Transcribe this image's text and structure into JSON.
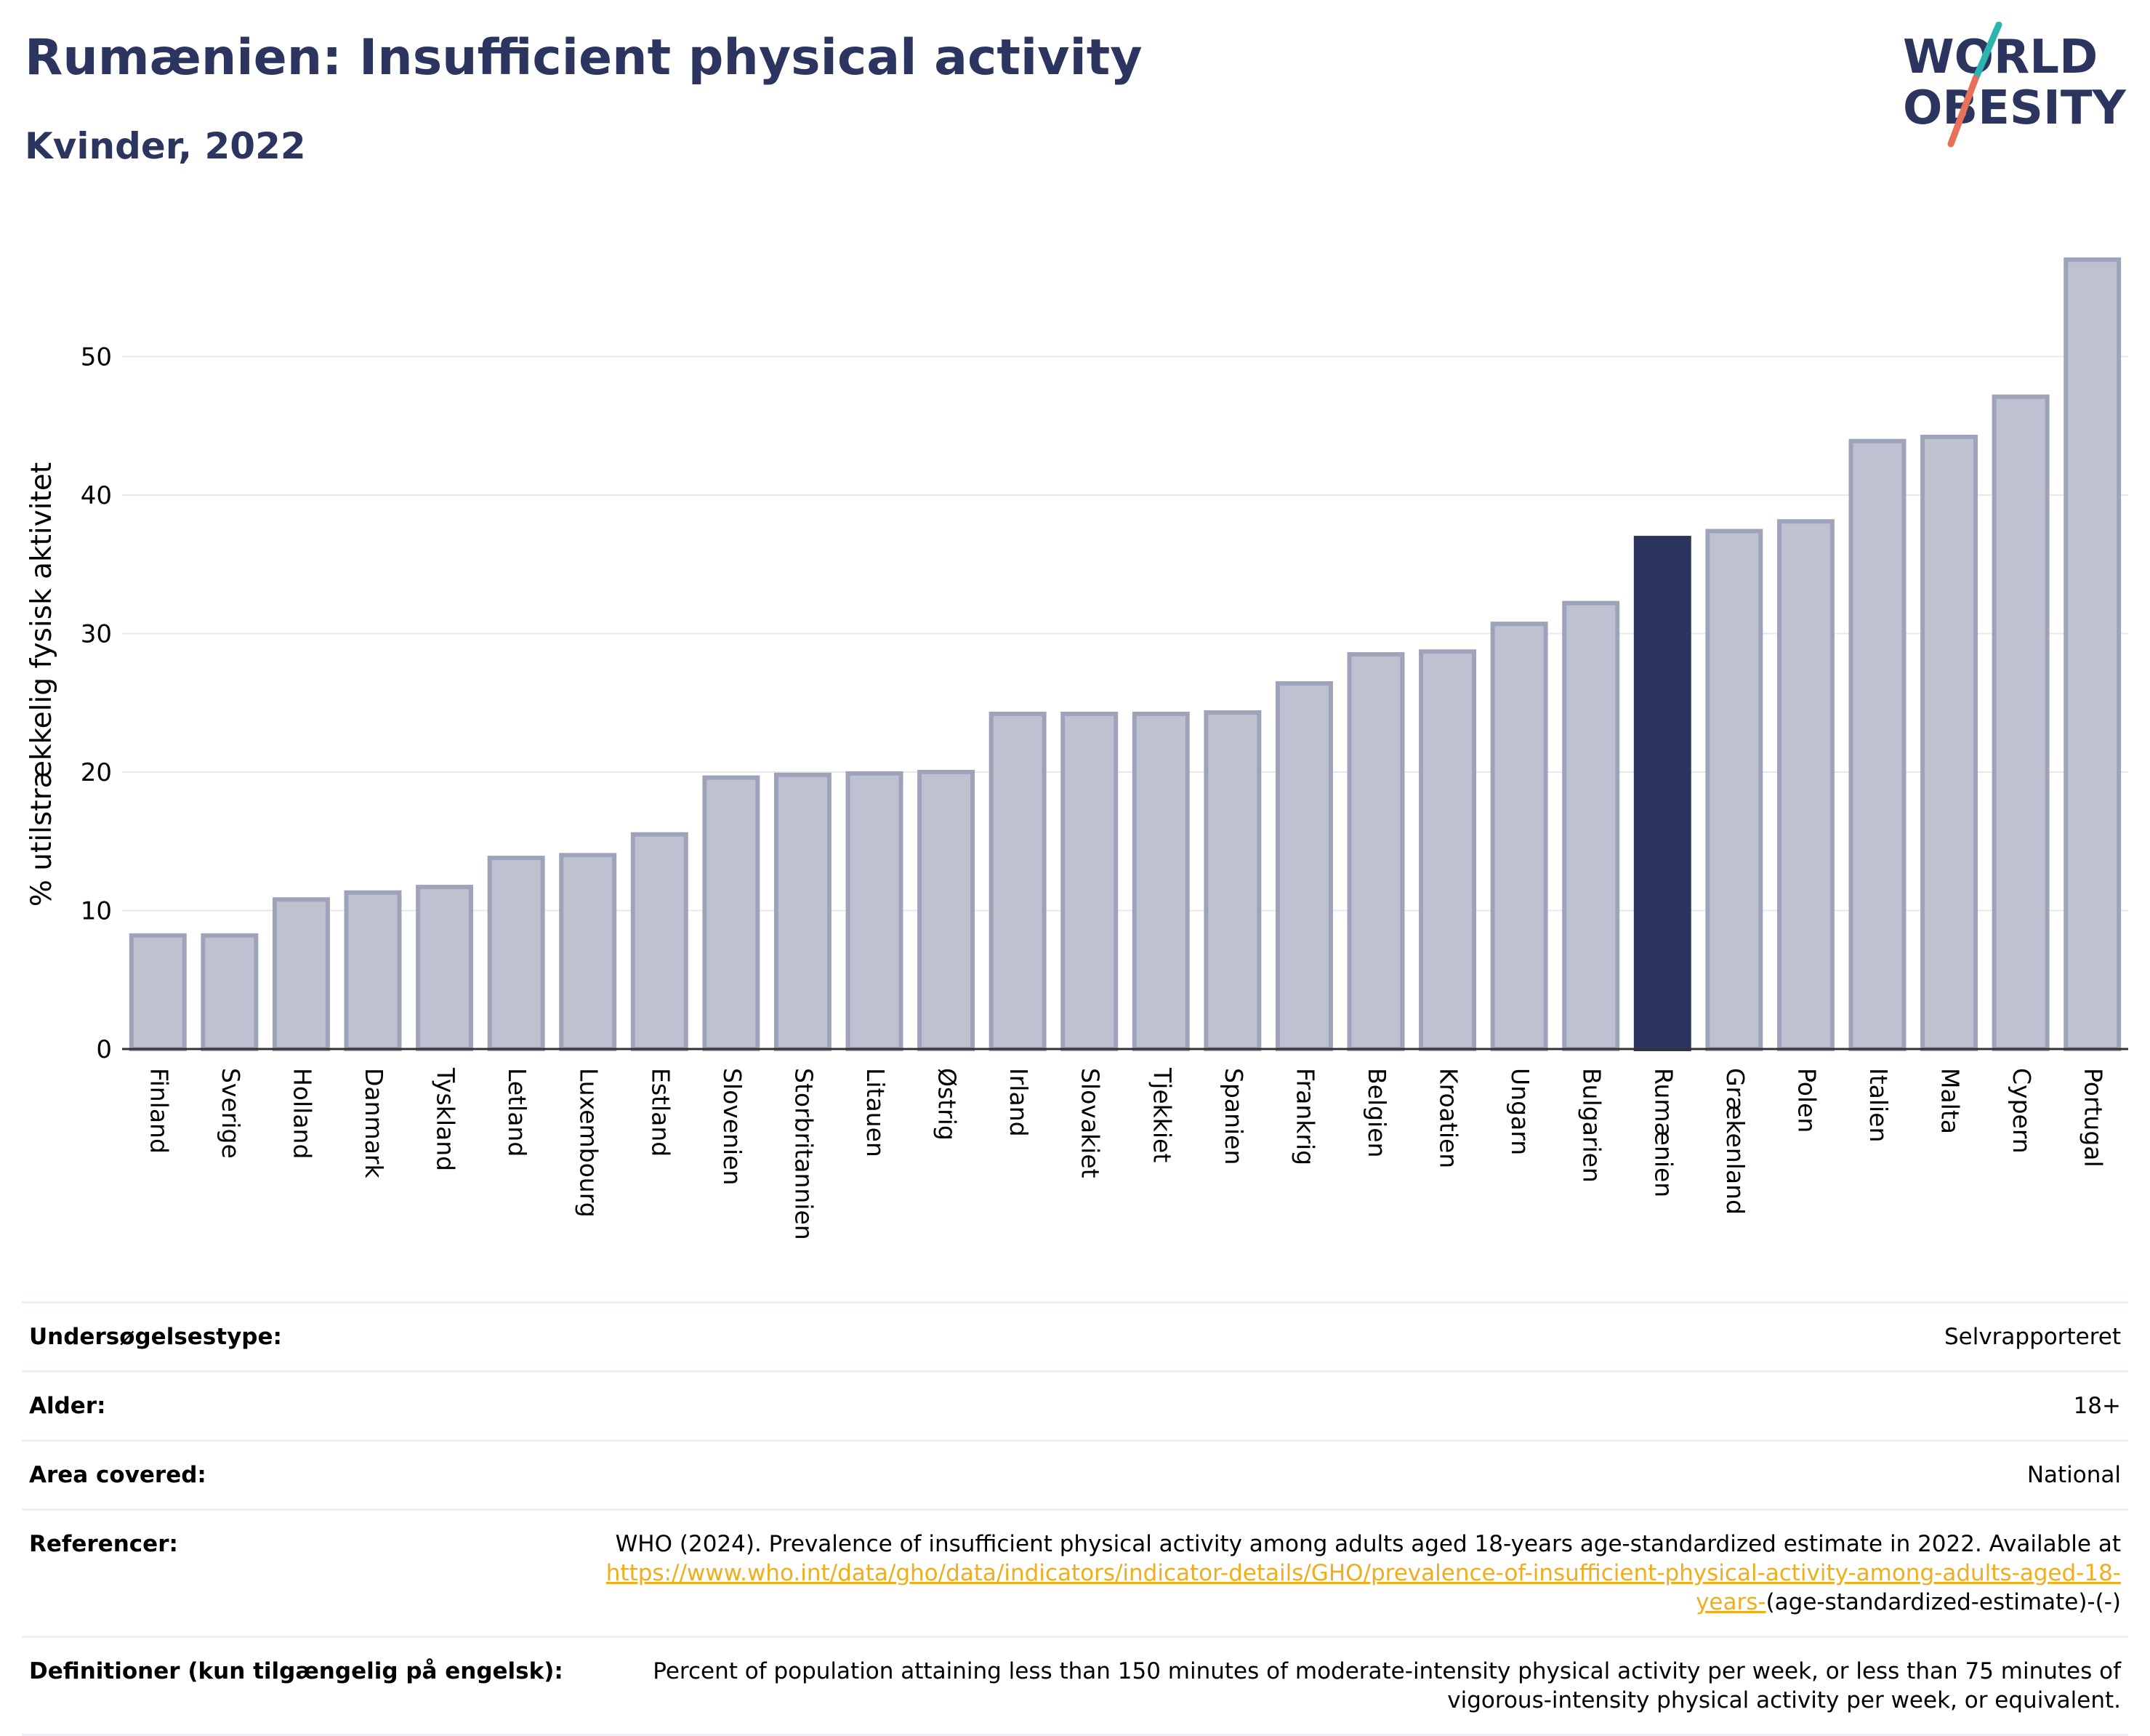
{
  "header": {
    "title": "Rumænien: Insufficient physical activity",
    "subtitle": "Kvinder, 2022"
  },
  "logo": {
    "line1": "WORLD",
    "line2": "OBESITY",
    "colors": {
      "text": "#2c3560",
      "slash_top": "#2bb5b0",
      "slash_bottom": "#e8715a"
    }
  },
  "colors": {
    "bar_default": "#bec1cf",
    "bar_border": "#9ea3ba",
    "bar_highlight": "#2c3560",
    "grid": "#e6e8ef",
    "axis": "#333333"
  },
  "chart_data": {
    "type": "bar",
    "ylabel": "% utilstrækkelig fysisk aktivitet",
    "xlabel": "",
    "ylim": [
      0,
      60
    ],
    "yticks": [
      0,
      10,
      20,
      30,
      40,
      50
    ],
    "grid": true,
    "highlight": "Rumænien",
    "categories": [
      "Finland",
      "Sverige",
      "Holland",
      "Danmark",
      "Tyskland",
      "Letland",
      "Luxembourg",
      "Estland",
      "Slovenien",
      "Storbritannien",
      "Litauen",
      "Østrig",
      "Irland",
      "Slovakiet",
      "Tjekkiet",
      "Spanien",
      "Frankrig",
      "Belgien",
      "Kroatien",
      "Ungarn",
      "Bulgarien",
      "Rumænien",
      "Grækenland",
      "Polen",
      "Italien",
      "Malta",
      "Cypern",
      "Portugal"
    ],
    "values": [
      8.2,
      8.2,
      10.8,
      11.3,
      11.7,
      13.8,
      14.0,
      15.5,
      19.6,
      19.8,
      19.9,
      20.0,
      24.2,
      24.2,
      24.2,
      24.3,
      26.4,
      28.5,
      28.7,
      30.7,
      32.2,
      36.9,
      37.4,
      38.1,
      43.9,
      44.2,
      47.1,
      57.0
    ]
  },
  "info": {
    "survey_type_label": "Undersøgelsestype:",
    "survey_type_value": "Selvrapporteret",
    "age_label": "Alder:",
    "age_value": "18+",
    "area_label": "Area covered:",
    "area_value": "National",
    "references_label": "Referencer:",
    "references_text": "WHO (2024). Prevalence of insufficient physical activity among adults aged 18-years age-standardized estimate in 2022. Available at",
    "references_link": "https://www.who.int/data/gho/data/indicators/indicator-details/GHO/prevalence-of-insufficient-physical-activity-among-adults-aged-18-years-",
    "references_suffix": "(age-standardized-estimate)-(-)",
    "definitions_label": "Definitioner (kun tilgængelig på engelsk):",
    "definitions_value": "Percent of population attaining less than 150 minutes of moderate-intensity physical activity per week, or less than 75 minutes of vigorous-intensity physical activity per week, or equivalent."
  }
}
